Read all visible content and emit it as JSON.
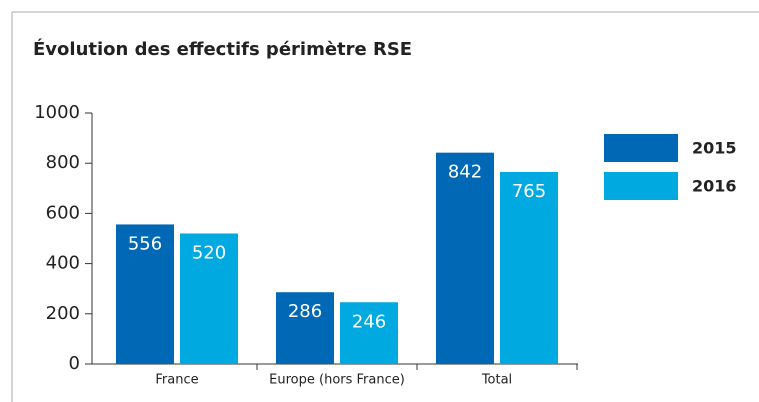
{
  "chart_data": {
    "type": "bar",
    "title": "Évolution des effectifs périmètre RSE",
    "categories": [
      "France",
      "Europe (hors France)",
      "Total"
    ],
    "series": [
      {
        "name": "2015",
        "color": "#0068b4",
        "values": [
          556,
          286,
          842
        ]
      },
      {
        "name": "2016",
        "color": "#00a9e0",
        "values": [
          520,
          246,
          765
        ]
      }
    ],
    "ylim": [
      0,
      1000
    ],
    "yticks": [
      0,
      200,
      400,
      600,
      800,
      1000
    ],
    "legend": "right"
  }
}
